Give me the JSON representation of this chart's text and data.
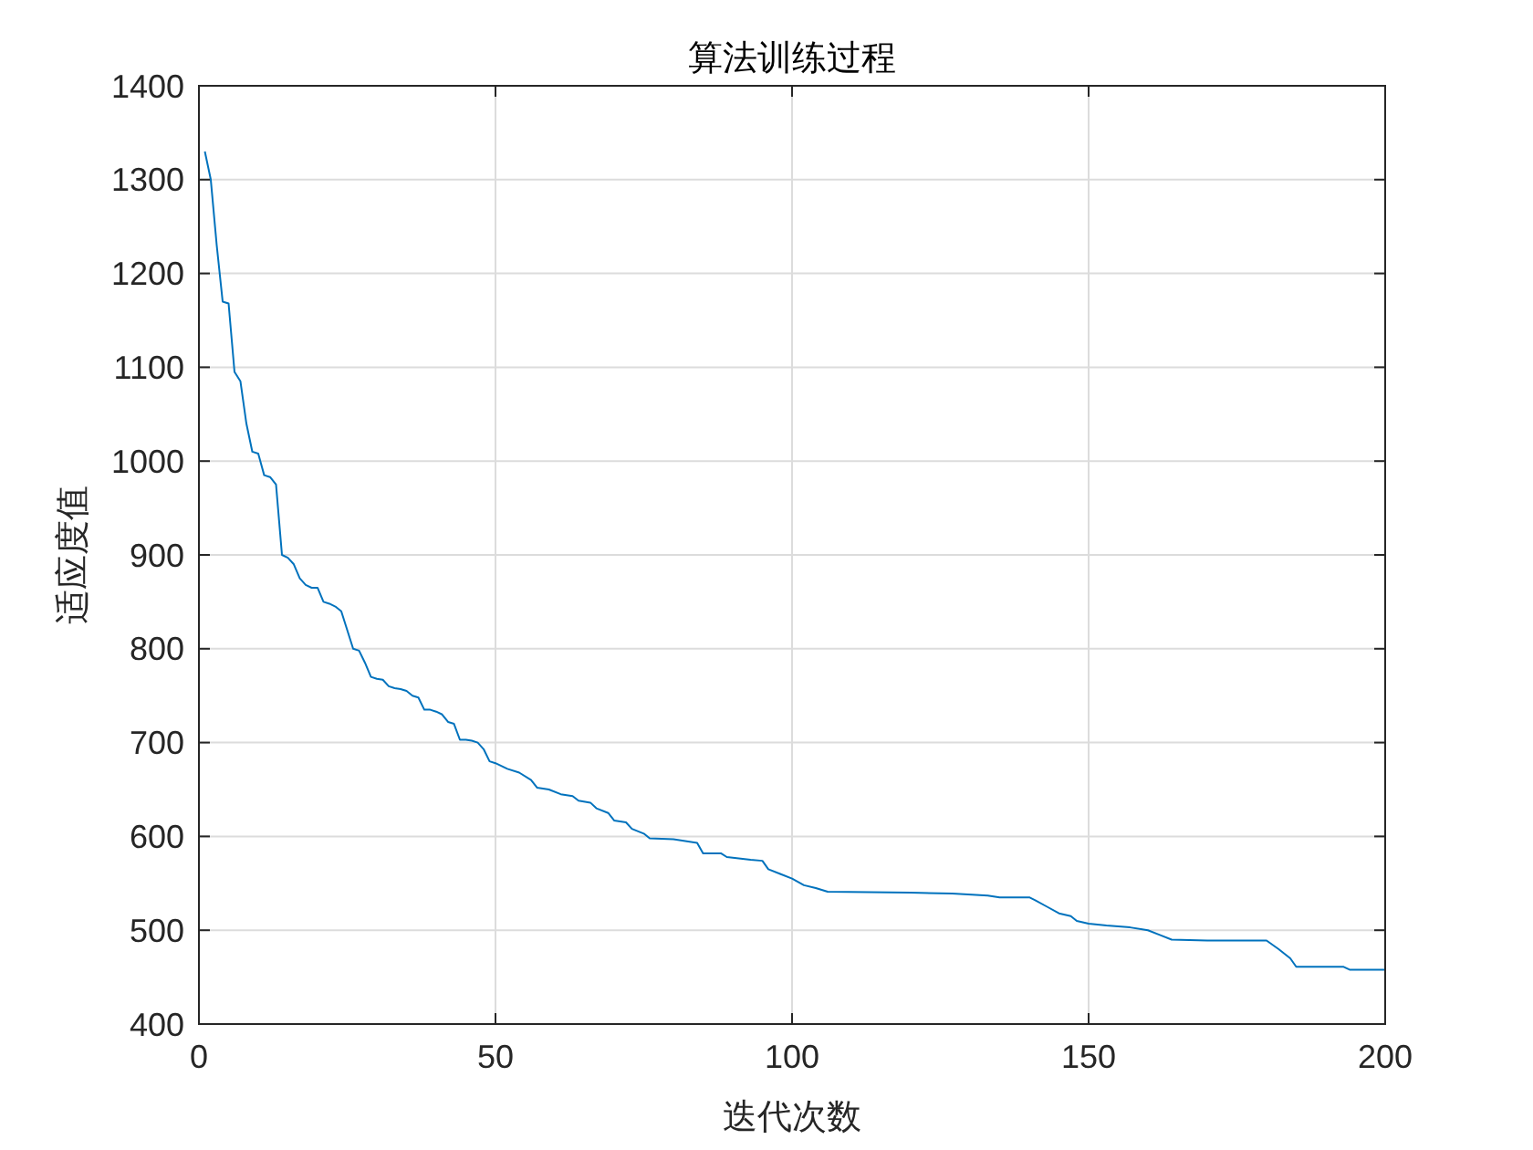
{
  "chart_data": {
    "type": "line",
    "title": "算法训练过程",
    "xlabel": "迭代次数",
    "ylabel": "适应度值",
    "xlim": [
      0,
      200
    ],
    "ylim": [
      400,
      1400
    ],
    "xticks": [
      0,
      50,
      100,
      150,
      200
    ],
    "yticks": [
      400,
      500,
      600,
      700,
      800,
      900,
      1000,
      1100,
      1200,
      1300,
      1400
    ],
    "grid": true,
    "marker": "none",
    "line_style": "solid",
    "series": [
      {
        "color": "#0072bd",
        "x": [
          1,
          2,
          3,
          4,
          5,
          6,
          7,
          8,
          9,
          10,
          11,
          12,
          13,
          14,
          15,
          16,
          17,
          18,
          19,
          20,
          21,
          22,
          23,
          24,
          25,
          26,
          27,
          28,
          29,
          30,
          31,
          32,
          33,
          34,
          35,
          36,
          37,
          38,
          39,
          40,
          41,
          42,
          43,
          44,
          45,
          46,
          47,
          48,
          49,
          50,
          52,
          54,
          56,
          57,
          59,
          61,
          63,
          64,
          66,
          67,
          69,
          70,
          72,
          73,
          75,
          76,
          80,
          84,
          85,
          88,
          89,
          93,
          95,
          96,
          98,
          100,
          102,
          104,
          106,
          120,
          127,
          133,
          135,
          140,
          141,
          143,
          145,
          147,
          148,
          150,
          153,
          157,
          160,
          162,
          164,
          170,
          180,
          182,
          184,
          185,
          193,
          194,
          200
        ],
        "values": [
          1330,
          1300,
          1230,
          1170,
          1168,
          1095,
          1085,
          1040,
          1010,
          1008,
          985,
          983,
          975,
          900,
          897,
          890,
          875,
          868,
          865,
          865,
          850,
          848,
          845,
          840,
          820,
          800,
          798,
          785,
          770,
          768,
          767,
          760,
          758,
          757,
          755,
          750,
          748,
          735,
          735,
          733,
          730,
          722,
          720,
          703,
          703,
          702,
          700,
          693,
          680,
          678,
          672,
          668,
          660,
          652,
          650,
          645,
          643,
          638,
          636,
          630,
          625,
          617,
          615,
          608,
          603,
          598,
          597,
          593,
          582,
          582,
          578,
          575,
          574,
          565,
          560,
          555,
          548,
          545,
          541,
          540,
          539,
          537,
          535,
          535,
          532,
          525,
          518,
          515,
          510,
          507,
          505,
          503,
          500,
          495,
          490,
          489,
          489,
          480,
          470,
          461,
          461,
          458,
          458
        ]
      }
    ]
  }
}
